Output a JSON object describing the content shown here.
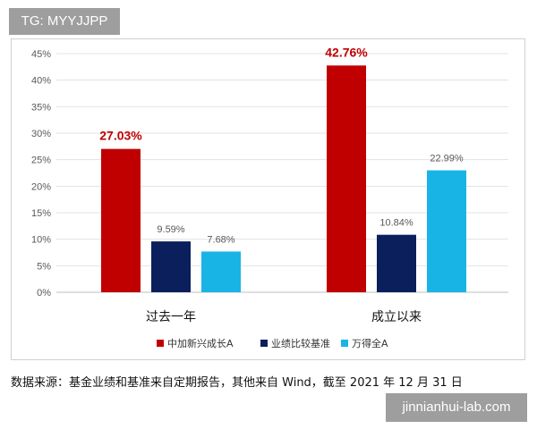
{
  "badge": "TG: MYYJJPP",
  "source_note": "数据来源：基金业绩和基准来自定期报告，其他来自 Wind，截至 2021 年 12 月 31 日",
  "watermark": "jinnianhui-lab.com",
  "chart_data": {
    "type": "bar",
    "title": "",
    "xlabel": "",
    "ylabel": "",
    "categories": [
      "过去一年",
      "成立以来"
    ],
    "series": [
      {
        "name": "中加新兴成长A",
        "values": [
          27.03,
          42.76
        ],
        "labels": [
          "27.03%",
          "42.76%"
        ],
        "color": "#c00000"
      },
      {
        "name": "业绩比较基准",
        "values": [
          9.59,
          10.84
        ],
        "labels": [
          "9.59%",
          "10.84%"
        ],
        "color": "#0b1f5c"
      },
      {
        "name": "万得全A",
        "values": [
          7.68,
          22.99
        ],
        "labels": [
          "7.68%",
          "22.99%"
        ],
        "color": "#19b4e6"
      }
    ],
    "ylim": [
      0,
      45
    ],
    "yticks": [
      0,
      5,
      10,
      15,
      20,
      25,
      30,
      35,
      40,
      45
    ],
    "ytick_labels": [
      "0%",
      "5%",
      "10%",
      "15%",
      "20%",
      "25%",
      "30%",
      "35%",
      "40%",
      "45%"
    ],
    "grid": true,
    "legend": "bottom"
  }
}
